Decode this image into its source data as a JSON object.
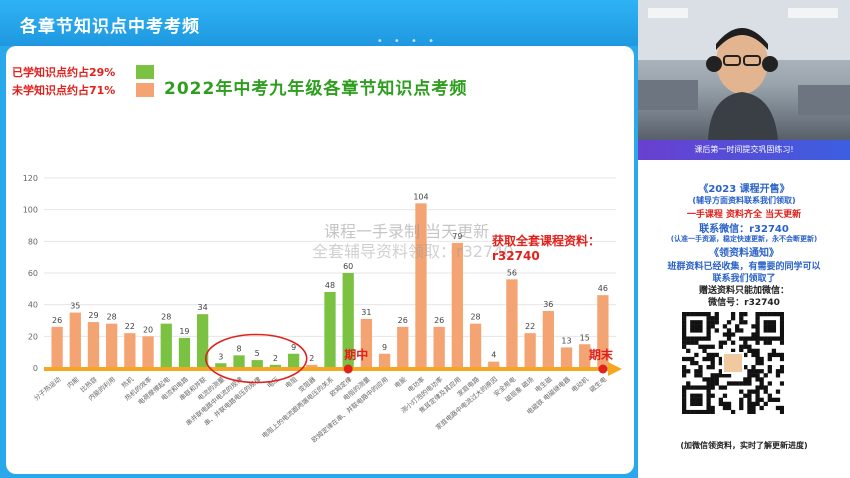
{
  "header": {
    "title": "各章节知识点中考考频",
    "dots": "• • • •"
  },
  "legend": [
    {
      "label": "已学知识点约占29%",
      "color": "#7cc242"
    },
    {
      "label": "未学知识点约占71%",
      "color": "#f4a373"
    }
  ],
  "watermarks": {
    "line1": "课程一手录制  当天更新",
    "line2": "全套辅导资料领取：r32740",
    "line3": "获取全套课程资料：r32740"
  },
  "markers": {
    "mid": "期中",
    "end": "期末"
  },
  "chart_data": {
    "type": "bar",
    "title": "2022年中考九年级各章节知识点考频",
    "ylim": [
      0,
      120
    ],
    "yticks": [
      0,
      20,
      40,
      60,
      80,
      100,
      120
    ],
    "grid": true,
    "categories": [
      "分子热运动",
      "内能",
      "比热容",
      "热机",
      "热机的效率",
      "能量的转化和守恒",
      "两种电荷",
      "电流和电路",
      "串联和并联",
      "电流的测量",
      "串、并联电路中电流的规律",
      "电压",
      "串、并联电路中电压的规律",
      "电阻",
      "变阻器",
      "电流与电压和电阻的关系",
      "欧姆定律",
      "电阻的测量",
      "欧姆定律在串、并联电路中的应用",
      "电能 电功",
      "电功率",
      "测量小灯泡的电功率",
      "焦耳定律",
      "家庭电路",
      "家庭电路中电流过大的原因",
      "安全用电",
      "磁现象 磁场",
      "电生磁",
      "电磁铁 电磁继电器",
      "电动机",
      "磁生电"
    ],
    "axis_labels": [
      "分子热运动",
      "内能",
      "比热容",
      "内能的利用",
      "热机",
      "热机的效率",
      "电荷摩擦起电",
      "电流和电路",
      "串联和并联",
      "电流的测量",
      "串并联电路中电流的规律",
      "串、并联电路电压的规律",
      "电压",
      "电阻",
      "变阻器",
      "电阻上的电流跟两端电压的关系",
      "欧姆定律",
      "电阻的测量",
      "欧姆定律在串、并联电路中的应用",
      "电能",
      "电功率",
      "测小灯泡的电功率",
      "焦耳定律及其应用",
      "家庭电路",
      "家庭电路中电流过大的原因",
      "安全用电",
      "磁现象 磁场",
      "电生磁",
      "电磁铁 电磁继电器",
      "电动机",
      "磁生电"
    ],
    "values": [
      26,
      35,
      29,
      28,
      22,
      20,
      28,
      19,
      34,
      3,
      8,
      5,
      2,
      9,
      2,
      48,
      60,
      31,
      9,
      26,
      104,
      26,
      79,
      28,
      4,
      56,
      22,
      36,
      13,
      15,
      46
    ],
    "learned": [
      false,
      false,
      false,
      false,
      false,
      false,
      true,
      true,
      true,
      true,
      true,
      true,
      true,
      true,
      false,
      true,
      true,
      false,
      false,
      false,
      false,
      false,
      false,
      false,
      false,
      false,
      false,
      false,
      false,
      false,
      false
    ],
    "colors": {
      "learned": "#7cc242",
      "unlearned": "#f4a373",
      "axis": "#f5a623",
      "grid": "#e6e6e6"
    }
  },
  "cam": {
    "banner": "课后第一时间提交巩固练习!"
  },
  "info": {
    "lines": [
      "《2023 课程开售》",
      "(辅导方面资料联系我们领取)",
      "一手课程  资料齐全  当天更新",
      "联系微信：r32740",
      "(认准一手资源，稳定快速更新，永不会断更新)",
      "《领资料通知》",
      "班群资料已经收集，有需要的同学可以",
      "联系我们领取了",
      "赠送资料只能加微信：",
      "微信号：r32740",
      "(加微信领资料，实时了解更新进度)"
    ]
  }
}
